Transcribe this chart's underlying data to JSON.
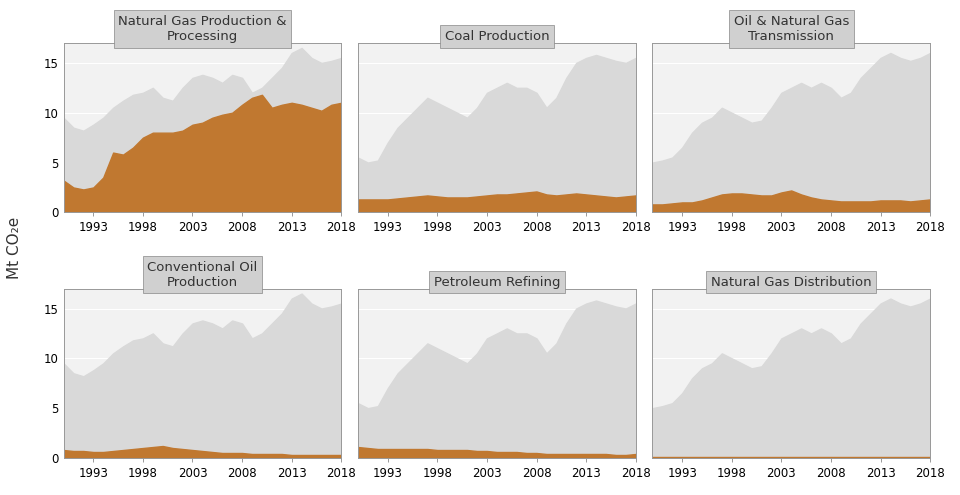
{
  "titles": [
    "Natural Gas Production &\nProcessing",
    "Coal Production",
    "Oil & Natural Gas\nTransmission",
    "Conventional Oil\nProduction",
    "Petroleum Refining",
    "Natural Gas Distribution"
  ],
  "years": [
    1990,
    1991,
    1992,
    1993,
    1994,
    1995,
    1996,
    1997,
    1998,
    1999,
    2000,
    2001,
    2002,
    2003,
    2004,
    2005,
    2006,
    2007,
    2008,
    2009,
    2010,
    2011,
    2012,
    2013,
    2014,
    2015,
    2016,
    2017,
    2018
  ],
  "background_series": [
    [
      9.5,
      8.5,
      8.2,
      8.8,
      9.5,
      10.5,
      11.2,
      11.8,
      12.0,
      12.5,
      11.5,
      11.2,
      12.5,
      13.5,
      13.8,
      13.5,
      13.0,
      13.8,
      13.5,
      12.0,
      12.5,
      13.5,
      14.5,
      16.0,
      16.5,
      15.5,
      15.0,
      15.2,
      15.5
    ],
    [
      5.5,
      5.0,
      5.2,
      7.0,
      8.5,
      9.5,
      10.5,
      11.5,
      11.0,
      10.5,
      10.0,
      9.5,
      10.5,
      12.0,
      12.5,
      13.0,
      12.5,
      12.5,
      12.0,
      10.5,
      11.5,
      13.5,
      15.0,
      15.5,
      15.8,
      15.5,
      15.2,
      15.0,
      15.5
    ],
    [
      5.0,
      5.2,
      5.5,
      6.5,
      8.0,
      9.0,
      9.5,
      10.5,
      10.0,
      9.5,
      9.0,
      9.2,
      10.5,
      12.0,
      12.5,
      13.0,
      12.5,
      13.0,
      12.5,
      11.5,
      12.0,
      13.5,
      14.5,
      15.5,
      16.0,
      15.5,
      15.2,
      15.5,
      16.0
    ],
    [
      9.5,
      8.5,
      8.2,
      8.8,
      9.5,
      10.5,
      11.2,
      11.8,
      12.0,
      12.5,
      11.5,
      11.2,
      12.5,
      13.5,
      13.8,
      13.5,
      13.0,
      13.8,
      13.5,
      12.0,
      12.5,
      13.5,
      14.5,
      16.0,
      16.5,
      15.5,
      15.0,
      15.2,
      15.5
    ],
    [
      5.5,
      5.0,
      5.2,
      7.0,
      8.5,
      9.5,
      10.5,
      11.5,
      11.0,
      10.5,
      10.0,
      9.5,
      10.5,
      12.0,
      12.5,
      13.0,
      12.5,
      12.5,
      12.0,
      10.5,
      11.5,
      13.5,
      15.0,
      15.5,
      15.8,
      15.5,
      15.2,
      15.0,
      15.5
    ],
    [
      5.0,
      5.2,
      5.5,
      6.5,
      8.0,
      9.0,
      9.5,
      10.5,
      10.0,
      9.5,
      9.0,
      9.2,
      10.5,
      12.0,
      12.5,
      13.0,
      12.5,
      13.0,
      12.5,
      11.5,
      12.0,
      13.5,
      14.5,
      15.5,
      16.0,
      15.5,
      15.2,
      15.5,
      16.0
    ]
  ],
  "foreground_series": [
    [
      3.2,
      2.5,
      2.3,
      2.5,
      3.5,
      6.0,
      5.8,
      6.5,
      7.5,
      8.0,
      8.0,
      8.0,
      8.2,
      8.8,
      9.0,
      9.5,
      9.8,
      10.0,
      10.8,
      11.5,
      11.8,
      10.5,
      10.8,
      11.0,
      10.8,
      10.5,
      10.2,
      10.8,
      11.0
    ],
    [
      1.3,
      1.3,
      1.3,
      1.3,
      1.4,
      1.5,
      1.6,
      1.7,
      1.6,
      1.5,
      1.5,
      1.5,
      1.6,
      1.7,
      1.8,
      1.8,
      1.9,
      2.0,
      2.1,
      1.8,
      1.7,
      1.8,
      1.9,
      1.8,
      1.7,
      1.6,
      1.5,
      1.6,
      1.7
    ],
    [
      0.8,
      0.8,
      0.9,
      1.0,
      1.0,
      1.2,
      1.5,
      1.8,
      1.9,
      1.9,
      1.8,
      1.7,
      1.7,
      2.0,
      2.2,
      1.8,
      1.5,
      1.3,
      1.2,
      1.1,
      1.1,
      1.1,
      1.1,
      1.2,
      1.2,
      1.2,
      1.1,
      1.2,
      1.3
    ],
    [
      0.8,
      0.7,
      0.7,
      0.6,
      0.6,
      0.7,
      0.8,
      0.9,
      1.0,
      1.1,
      1.2,
      1.0,
      0.9,
      0.8,
      0.7,
      0.6,
      0.5,
      0.5,
      0.5,
      0.4,
      0.4,
      0.4,
      0.4,
      0.3,
      0.3,
      0.3,
      0.3,
      0.3,
      0.3
    ],
    [
      1.1,
      1.0,
      0.9,
      0.9,
      0.9,
      0.9,
      0.9,
      0.9,
      0.8,
      0.8,
      0.8,
      0.8,
      0.7,
      0.7,
      0.6,
      0.6,
      0.6,
      0.5,
      0.5,
      0.4,
      0.4,
      0.4,
      0.4,
      0.4,
      0.4,
      0.4,
      0.3,
      0.3,
      0.4
    ],
    [
      0.05,
      0.05,
      0.05,
      0.05,
      0.05,
      0.05,
      0.05,
      0.05,
      0.05,
      0.05,
      0.05,
      0.05,
      0.05,
      0.05,
      0.05,
      0.05,
      0.05,
      0.05,
      0.05,
      0.05,
      0.05,
      0.05,
      0.05,
      0.05,
      0.05,
      0.05,
      0.05,
      0.05,
      0.05
    ]
  ],
  "ylim": [
    0,
    17
  ],
  "yticks": [
    0,
    5,
    10,
    15
  ],
  "xticks": [
    1993,
    1998,
    2003,
    2008,
    2013,
    2018
  ],
  "xlim": [
    1990,
    2018
  ],
  "bg_color": "#d9d9d9",
  "fg_color": "#c07830",
  "panel_facecolor": "#f2f2f2",
  "title_facecolor": "#d0d0d0",
  "fig_facecolor": "#ffffff",
  "ylabel": "Mt CO₂e",
  "title_fontsize": 9.5,
  "label_fontsize": 8.5,
  "grid_color": "#ffffff",
  "spine_color": "#999999",
  "title_sep_color": "#888888"
}
